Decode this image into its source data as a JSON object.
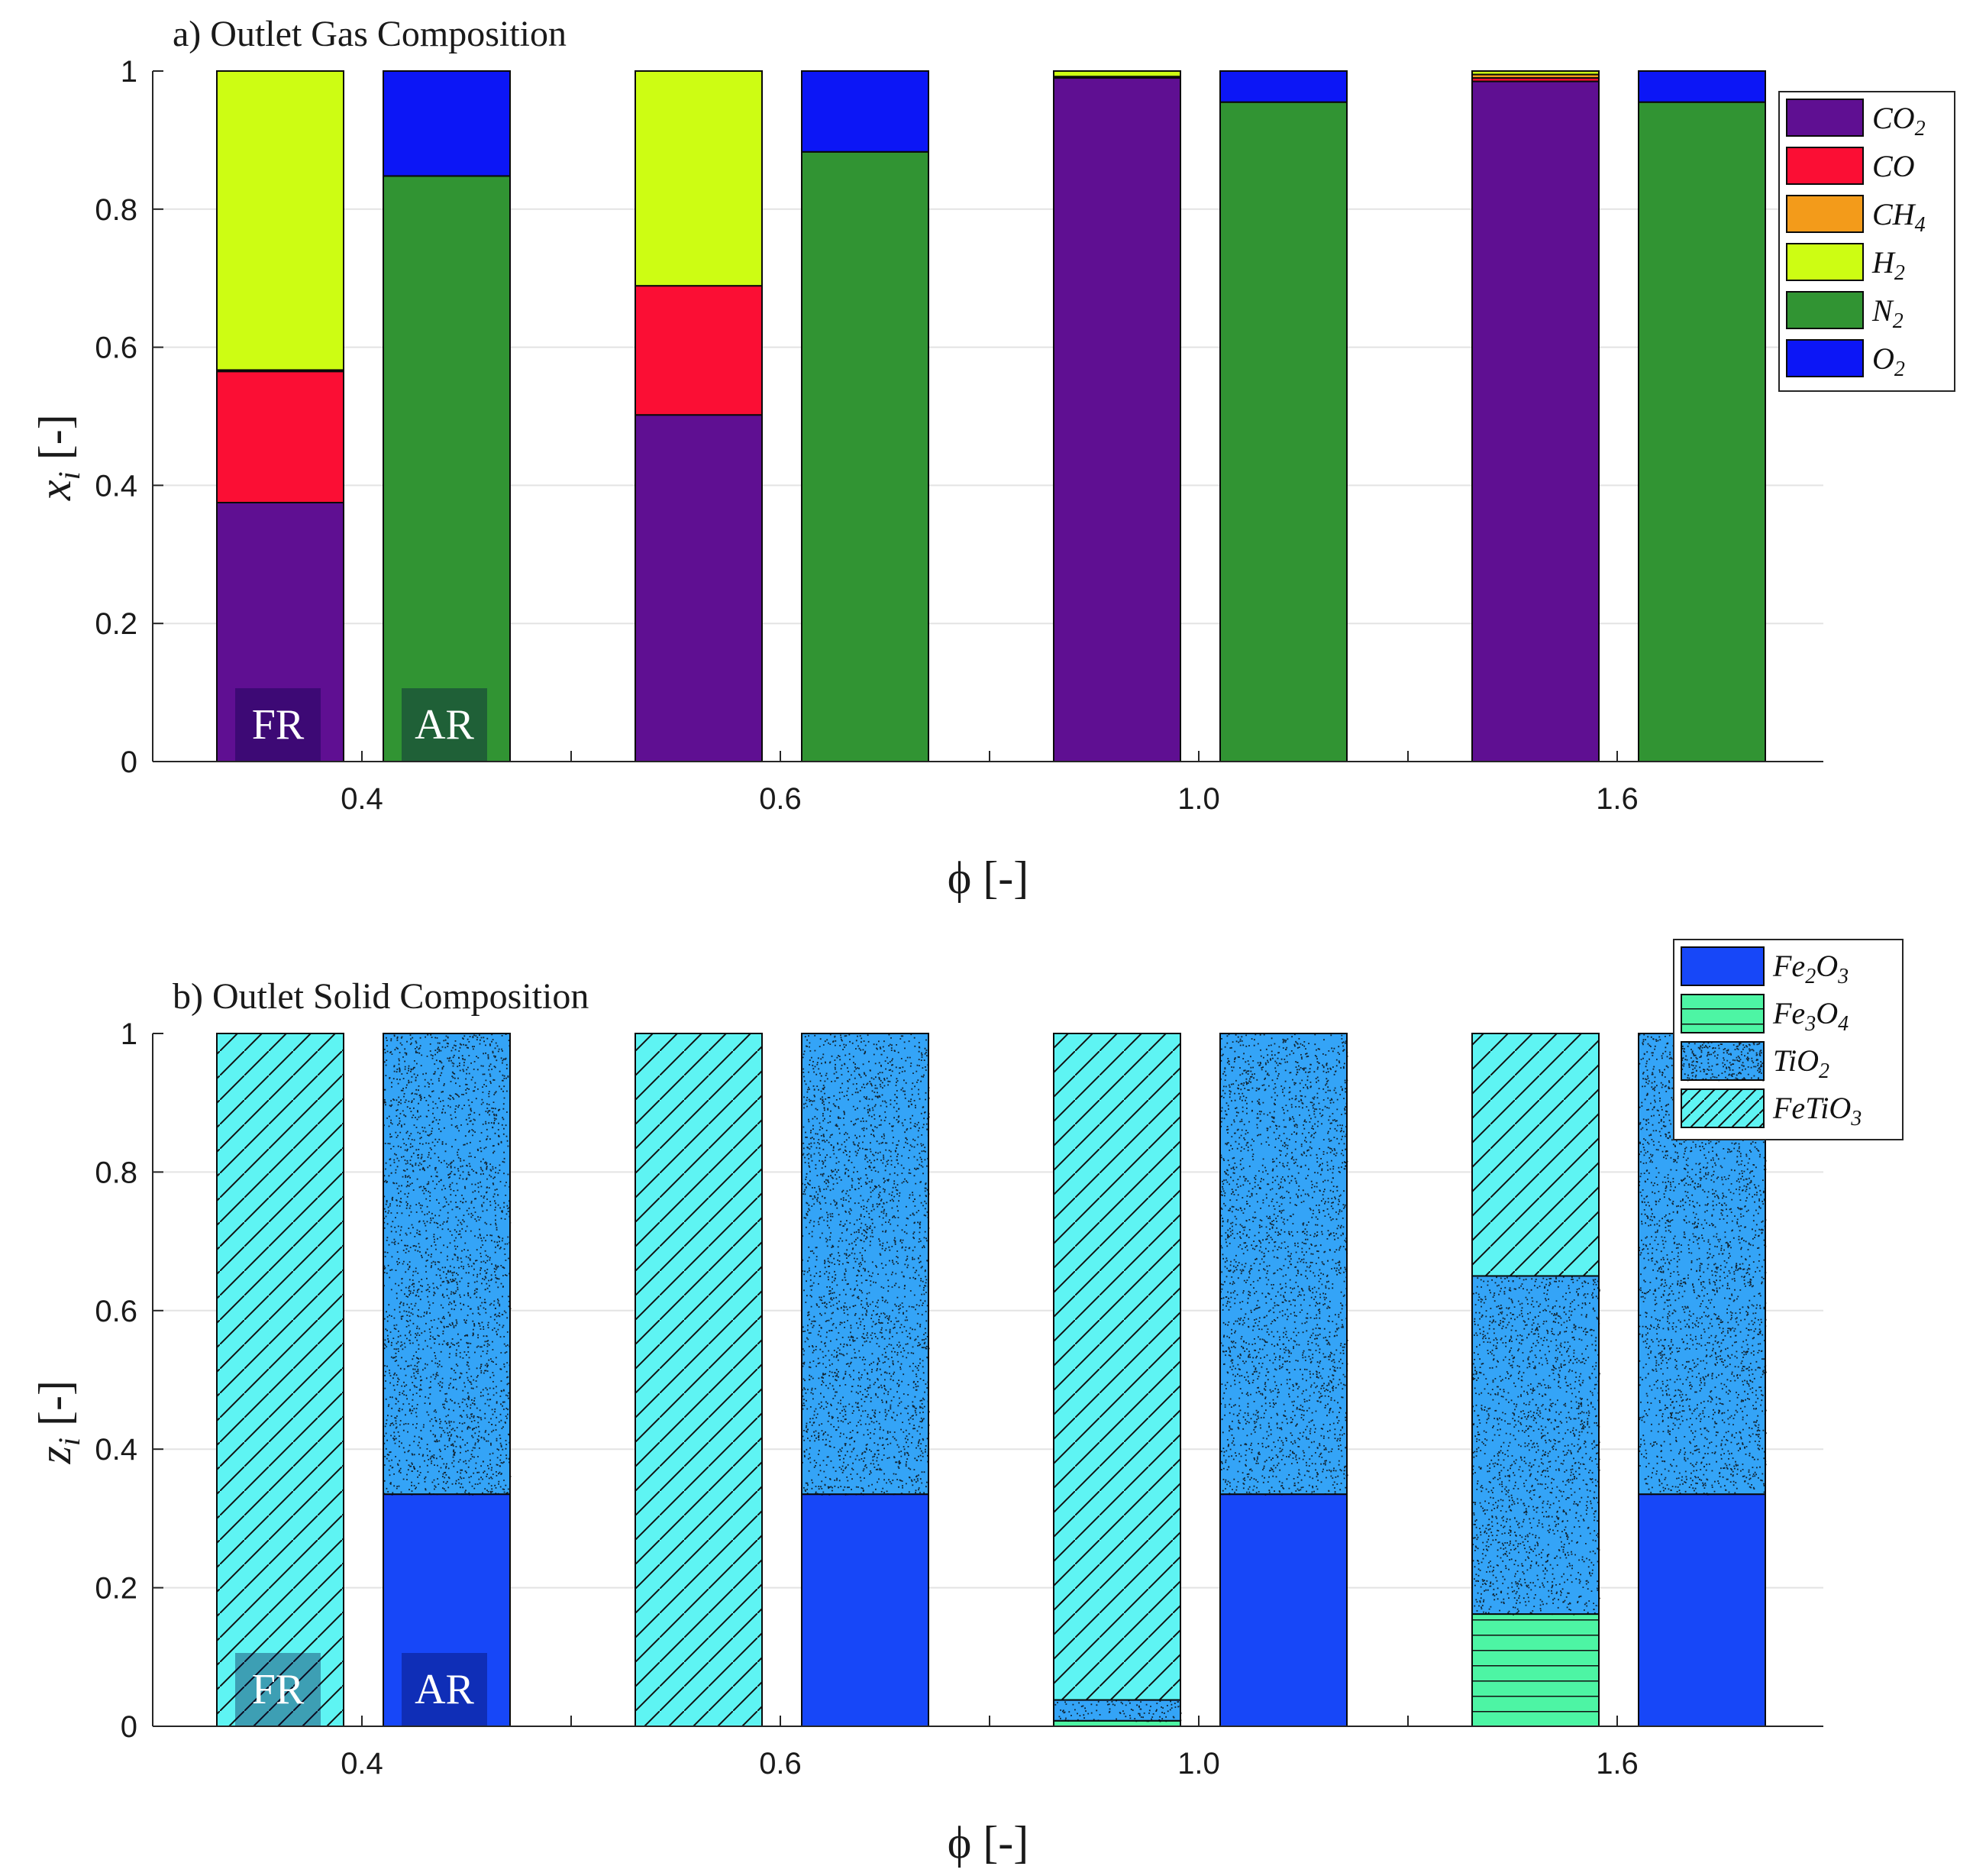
{
  "chart_data": [
    {
      "type": "bar",
      "stacked": true,
      "title": "a) Outlet Gas Composition",
      "xlabel": "ϕ [-]",
      "ylabel": "x_i [-]",
      "ylim": [
        0,
        1
      ],
      "yticks": [
        "0",
        "0.2",
        "0.4",
        "0.6",
        "0.8",
        "1"
      ],
      "categories": [
        "0.4",
        "0.6",
        "1.0",
        "1.6"
      ],
      "groups": [
        "FR",
        "AR"
      ],
      "group_labels": [
        "FR",
        "AR"
      ],
      "legend_position": "top-right",
      "series": [
        {
          "name": "CO2",
          "color": "#5f0f92",
          "pattern": "solid",
          "FR": [
            0.375,
            0.502,
            0.99,
            0.985
          ],
          "AR": [
            0,
            0,
            0,
            0
          ]
        },
        {
          "name": "CO",
          "color": "#fb0e34",
          "pattern": "solid",
          "FR": [
            0.19,
            0.187,
            0.002,
            0.005
          ],
          "AR": [
            0,
            0,
            0,
            0
          ]
        },
        {
          "name": "CH4",
          "color": "#f39b1a",
          "pattern": "solid",
          "FR": [
            0.002,
            0.0,
            0.0,
            0.005
          ],
          "AR": [
            0,
            0,
            0,
            0
          ]
        },
        {
          "name": "H2",
          "color": "#cdfd13",
          "pattern": "solid",
          "FR": [
            0.433,
            0.311,
            0.008,
            0.005
          ],
          "AR": [
            0,
            0,
            0,
            0
          ]
        },
        {
          "name": "N2",
          "color": "#319433",
          "pattern": "solid",
          "FR": [
            0,
            0,
            0,
            0
          ],
          "AR": [
            0.848,
            0.883,
            0.955,
            0.955
          ]
        },
        {
          "name": "O2",
          "color": "#0c16f6",
          "pattern": "solid",
          "FR": [
            0,
            0,
            0,
            0
          ],
          "AR": [
            0.152,
            0.117,
            0.045,
            0.045
          ]
        }
      ]
    },
    {
      "type": "bar",
      "stacked": true,
      "title": "b) Outlet Solid Composition",
      "xlabel": "ϕ [-]",
      "ylabel": "z_i [-]",
      "ylim": [
        0,
        1
      ],
      "yticks": [
        "0",
        "0.2",
        "0.4",
        "0.6",
        "0.8",
        "1"
      ],
      "categories": [
        "0.4",
        "0.6",
        "1.0",
        "1.6"
      ],
      "groups": [
        "FR",
        "AR"
      ],
      "group_labels": [
        "FR",
        "AR"
      ],
      "legend_position": "top-right",
      "series": [
        {
          "name": "Fe2O3",
          "color": "#1747f8",
          "pattern": "solid",
          "FR": [
            0,
            0,
            0,
            0
          ],
          "AR": [
            0.335,
            0.335,
            0.335,
            0.335
          ]
        },
        {
          "name": "Fe3O4",
          "color": "#4df5a4",
          "pattern": "hlines",
          "FR": [
            0,
            0,
            0.008,
            0.162
          ],
          "AR": [
            0,
            0,
            0,
            0
          ]
        },
        {
          "name": "TiO2",
          "color": "#34a4f7",
          "pattern": "dots",
          "FR": [
            0,
            0,
            0.03,
            0.488
          ],
          "AR": [
            0.665,
            0.665,
            0.665,
            0.665
          ]
        },
        {
          "name": "FeTiO3",
          "color": "#5ef4f3",
          "pattern": "diag",
          "FR": [
            1.0,
            1.0,
            0.962,
            0.35
          ],
          "AR": [
            0,
            0,
            0,
            0
          ]
        }
      ]
    }
  ]
}
